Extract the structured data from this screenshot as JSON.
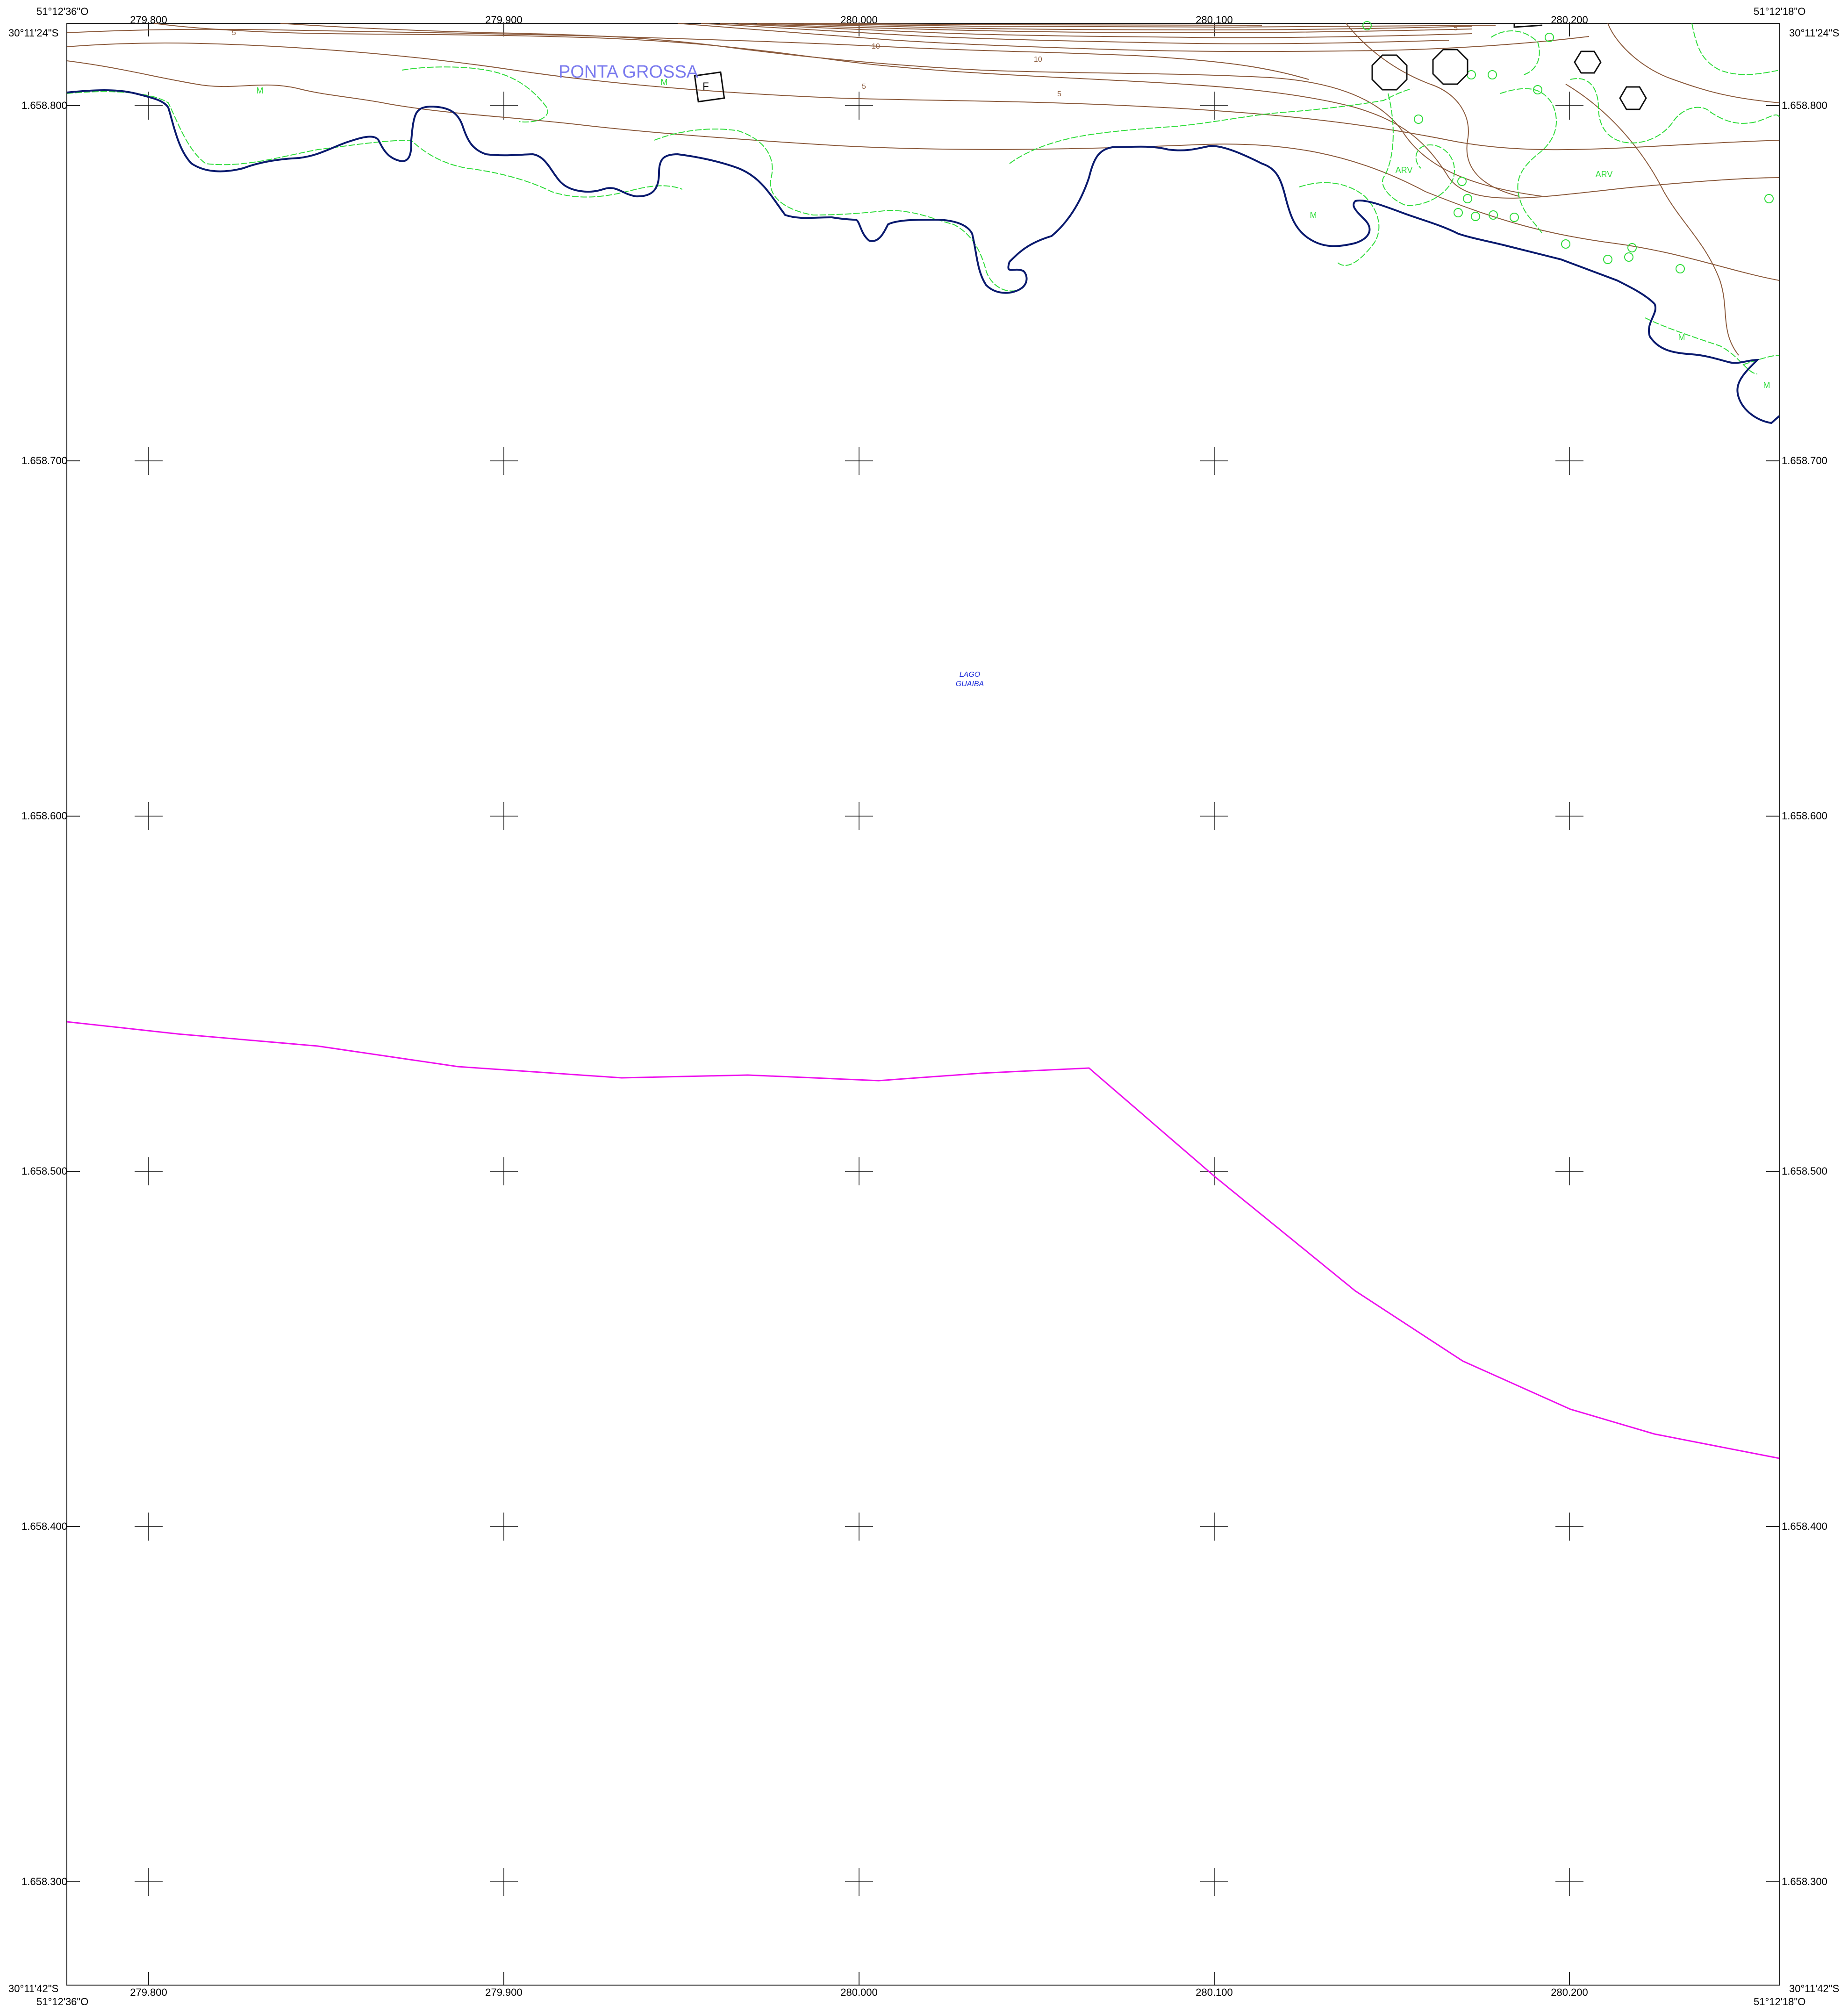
{
  "corners": {
    "top_left_lon": "51°12'36\"O",
    "top_left_lat": "30°11'24\"S",
    "top_right_lon": "51°12'18\"O",
    "top_right_lat": "30°11'24\"S",
    "bottom_left_lon": "51°12'36\"O",
    "bottom_left_lat": "30°11'42\"S",
    "bottom_right_lon": "51°12'18\"O",
    "bottom_right_lat": "30°11'42\"S"
  },
  "easting_labels": [
    "279.800",
    "279.900",
    "280.000",
    "280.100",
    "280.200"
  ],
  "northing_labels": [
    "1.658.800",
    "1.658.700",
    "1.658.600",
    "1.658.500",
    "1.658.400",
    "1.658.300"
  ],
  "place_name": "PONTA GROSSA",
  "water_label_line1": "LAGO",
  "water_label_line2": "GUAIBA",
  "symbols": {
    "marker_f": "F",
    "veg_m": "M",
    "veg_arv": "ARV"
  },
  "contour_labels": [
    "5",
    "10",
    "10",
    "5",
    "5",
    "5"
  ],
  "colors": {
    "contour": "#8b5a3c",
    "shoreline": "#0a1a6e",
    "vegetation": "#2fdc3a",
    "boundary": "#ee11ee",
    "place_name": "#7a7aee",
    "water_label": "#1a2ad8",
    "frame": "#222222"
  }
}
